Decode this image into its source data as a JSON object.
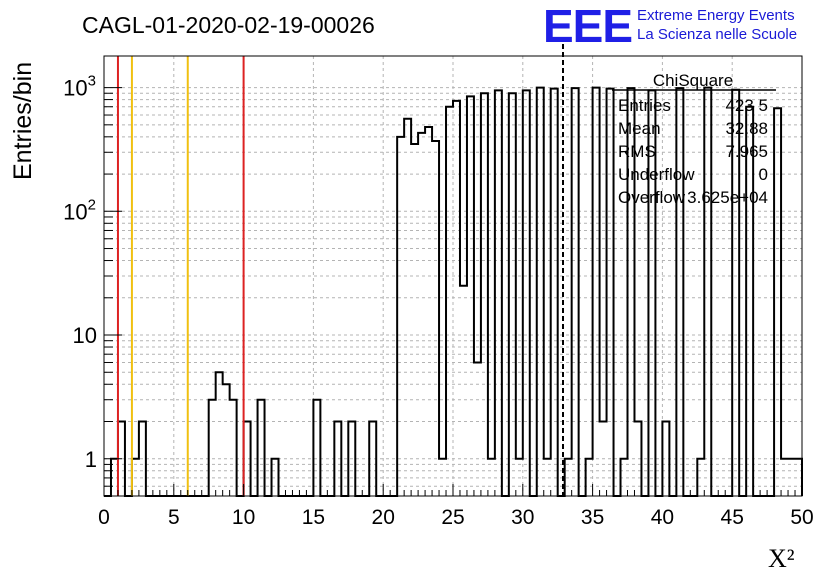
{
  "title": "CAGL-01-2020-02-19-00026",
  "logo": {
    "mark": "EEE",
    "line1": "Extreme Energy Events",
    "line2": "La Scienza nelle Scuole",
    "color": "#1f1fe6"
  },
  "stats": {
    "name": "ChiSquare",
    "rows": [
      {
        "label": "Entries",
        "value": "423 5"
      },
      {
        "label": "Mean",
        "value": "32.88"
      },
      {
        "label": "RMS",
        "value": "7.965"
      },
      {
        "label": "Underflow",
        "value": "0"
      },
      {
        "label": "Overflow",
        "value": "3.625e+04"
      }
    ]
  },
  "chart_data": {
    "type": "bar",
    "title": "CAGL-01-2020-02-19-00026",
    "xlabel": "X²",
    "ylabel": "Entries/bin",
    "xlim": [
      0,
      50
    ],
    "ylim": [
      0.5,
      1800
    ],
    "yscale": "log",
    "grid": true,
    "bin_width": 0.5,
    "x_ticks": [
      "0",
      "5",
      "10",
      "15",
      "20",
      "25",
      "30",
      "35",
      "40",
      "45",
      "50"
    ],
    "y_ticks": [
      {
        "value": 1,
        "label": "1"
      },
      {
        "value": 10,
        "label": "10"
      },
      {
        "value": 100,
        "label": "10^2"
      },
      {
        "value": 1000,
        "label": "10^3"
      }
    ],
    "bins": [
      {
        "x": 0.5,
        "y": 1
      },
      {
        "x": 1.0,
        "y": 2
      },
      {
        "x": 2.0,
        "y": 1
      },
      {
        "x": 2.5,
        "y": 2
      },
      {
        "x": 7.5,
        "y": 3
      },
      {
        "x": 8.0,
        "y": 5
      },
      {
        "x": 8.5,
        "y": 4
      },
      {
        "x": 9.0,
        "y": 3
      },
      {
        "x": 10.0,
        "y": 2
      },
      {
        "x": 11.0,
        "y": 3
      },
      {
        "x": 12.0,
        "y": 1
      },
      {
        "x": 15.0,
        "y": 3
      },
      {
        "x": 16.5,
        "y": 2
      },
      {
        "x": 17.5,
        "y": 2
      },
      {
        "x": 19.0,
        "y": 2
      },
      {
        "x": 21.0,
        "y": 400
      },
      {
        "x": 21.5,
        "y": 560
      },
      {
        "x": 22.0,
        "y": 350
      },
      {
        "x": 22.5,
        "y": 430
      },
      {
        "x": 23.0,
        "y": 480
      },
      {
        "x": 23.5,
        "y": 370
      },
      {
        "x": 24.0,
        "y": 1
      },
      {
        "x": 24.5,
        "y": 700
      },
      {
        "x": 25.0,
        "y": 780
      },
      {
        "x": 25.5,
        "y": 25
      },
      {
        "x": 26.0,
        "y": 850
      },
      {
        "x": 26.5,
        "y": 6
      },
      {
        "x": 27.0,
        "y": 900
      },
      {
        "x": 27.5,
        "y": 1
      },
      {
        "x": 28.0,
        "y": 950
      },
      {
        "x": 29.0,
        "y": 900
      },
      {
        "x": 29.5,
        "y": 1
      },
      {
        "x": 30.0,
        "y": 950
      },
      {
        "x": 31.0,
        "y": 1000
      },
      {
        "x": 31.5,
        "y": 1
      },
      {
        "x": 32.0,
        "y": 980
      },
      {
        "x": 33.0,
        "y": 1
      },
      {
        "x": 33.5,
        "y": 990
      },
      {
        "x": 34.5,
        "y": 1
      },
      {
        "x": 35.0,
        "y": 1000
      },
      {
        "x": 35.5,
        "y": 2
      },
      {
        "x": 36.0,
        "y": 980
      },
      {
        "x": 37.0,
        "y": 1
      },
      {
        "x": 37.5,
        "y": 990
      },
      {
        "x": 38.0,
        "y": 2
      },
      {
        "x": 39.0,
        "y": 950
      },
      {
        "x": 40.0,
        "y": 2
      },
      {
        "x": 41.0,
        "y": 990
      },
      {
        "x": 42.5,
        "y": 1
      },
      {
        "x": 43.0,
        "y": 1000
      },
      {
        "x": 45.0,
        "y": 960
      },
      {
        "x": 46.0,
        "y": 700
      },
      {
        "x": 48.0,
        "y": 680
      },
      {
        "x": 48.5,
        "y": 1
      },
      {
        "x": 49.0,
        "y": 1
      },
      {
        "x": 49.5,
        "y": 1
      }
    ],
    "reference_lines": [
      {
        "x": 1,
        "color": "#dd2222"
      },
      {
        "x": 2,
        "color": "#f0c010"
      },
      {
        "x": 6,
        "color": "#f0c010"
      },
      {
        "x": 10,
        "color": "#dd2222"
      }
    ],
    "mean_marker": {
      "x": 32.88,
      "style": "dashed",
      "color": "#000000"
    }
  }
}
